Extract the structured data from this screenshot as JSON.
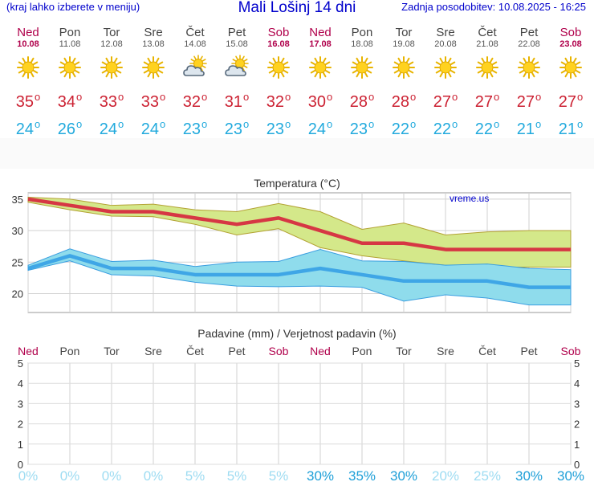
{
  "header": {
    "menu_hint": "(kraj lahko izberete v meniju)",
    "title": "Mali Lošinj 14 dni",
    "updated": "Zadnja posodobitev: 10.08.2025 - 16:25"
  },
  "colors": {
    "weekend": "#b0004b",
    "tmax": "#cc2233",
    "tmin": "#22aadd",
    "max_band": "#d4e88a",
    "min_band": "#8fdcec",
    "title_blue": "#0000cc"
  },
  "days": [
    {
      "name": "Ned",
      "date": "10.08",
      "weekend": true,
      "icon": "sun-icon",
      "tmax": "35",
      "tmin": "24"
    },
    {
      "name": "Pon",
      "date": "11.08",
      "weekend": false,
      "icon": "sun-icon",
      "tmax": "34",
      "tmin": "26"
    },
    {
      "name": "Tor",
      "date": "12.08",
      "weekend": false,
      "icon": "sun-icon",
      "tmax": "33",
      "tmin": "24"
    },
    {
      "name": "Sre",
      "date": "13.08",
      "weekend": false,
      "icon": "sun-icon",
      "tmax": "33",
      "tmin": "24"
    },
    {
      "name": "Čet",
      "date": "14.08",
      "weekend": false,
      "icon": "cloud-sun-icon",
      "tmax": "32",
      "tmin": "23"
    },
    {
      "name": "Pet",
      "date": "15.08",
      "weekend": false,
      "icon": "cloud-sun-icon",
      "tmax": "31",
      "tmin": "23"
    },
    {
      "name": "Sob",
      "date": "16.08",
      "weekend": true,
      "icon": "sun-icon",
      "tmax": "32",
      "tmin": "23"
    },
    {
      "name": "Ned",
      "date": "17.08",
      "weekend": true,
      "icon": "sun-icon",
      "tmax": "30",
      "tmin": "24"
    },
    {
      "name": "Pon",
      "date": "18.08",
      "weekend": false,
      "icon": "sun-icon",
      "tmax": "28",
      "tmin": "23"
    },
    {
      "name": "Tor",
      "date": "19.08",
      "weekend": false,
      "icon": "sun-icon",
      "tmax": "28",
      "tmin": "22"
    },
    {
      "name": "Sre",
      "date": "20.08",
      "weekend": false,
      "icon": "sun-icon",
      "tmax": "27",
      "tmin": "22"
    },
    {
      "name": "Čet",
      "date": "21.08",
      "weekend": false,
      "icon": "sun-icon",
      "tmax": "27",
      "tmin": "22"
    },
    {
      "name": "Pet",
      "date": "22.08",
      "weekend": false,
      "icon": "sun-icon",
      "tmax": "27",
      "tmin": "21"
    },
    {
      "name": "Sob",
      "date": "23.08",
      "weekend": true,
      "icon": "sun-icon",
      "tmax": "27",
      "tmin": "21"
    }
  ],
  "chart_data": [
    {
      "type": "line",
      "title": "Temperatura (°C)",
      "watermark": "vreme.us",
      "x": [
        0,
        1,
        2,
        3,
        4,
        5,
        6,
        7,
        8,
        9,
        10,
        11,
        12,
        13
      ],
      "ylim": [
        17,
        36
      ],
      "yticks": [
        20,
        25,
        30,
        35
      ],
      "series": [
        {
          "name": "max",
          "values": [
            35,
            34,
            33,
            33,
            32,
            31,
            32,
            30,
            28,
            28,
            27,
            27,
            27,
            27
          ]
        },
        {
          "name": "max_upper",
          "values": [
            35.3,
            35,
            34,
            34.2,
            33.3,
            33,
            34.3,
            33,
            30.2,
            31.2,
            29.3,
            29.8,
            30,
            30
          ]
        },
        {
          "name": "max_lower",
          "values": [
            34.5,
            33.3,
            32.3,
            32.2,
            31,
            29.3,
            30.3,
            27.3,
            26,
            25.2,
            24.5,
            24.2,
            24.2,
            24.2
          ]
        },
        {
          "name": "min",
          "values": [
            24,
            26,
            24,
            24,
            23,
            23,
            23,
            24,
            23,
            22,
            22,
            22,
            21,
            21
          ]
        },
        {
          "name": "min_upper",
          "values": [
            24.5,
            27.1,
            25.1,
            25.3,
            24.3,
            25,
            25.1,
            27,
            25.2,
            25.1,
            24.5,
            24.7,
            24,
            23.8
          ]
        },
        {
          "name": "min_lower",
          "values": [
            23.7,
            25.2,
            23,
            22.8,
            21.8,
            21.2,
            21.1,
            21.2,
            21,
            18.8,
            19.8,
            19.3,
            18.2,
            18.2
          ]
        }
      ]
    },
    {
      "type": "bar",
      "title": "Padavine (mm) / Verjetnost padavin (%)",
      "categories": [
        "Ned",
        "Pon",
        "Tor",
        "Sre",
        "Čet",
        "Pet",
        "Sob",
        "Ned",
        "Pon",
        "Tor",
        "Sre",
        "Čet",
        "Pet",
        "Sob"
      ],
      "weekend": [
        true,
        false,
        false,
        false,
        false,
        false,
        true,
        true,
        false,
        false,
        false,
        false,
        false,
        true
      ],
      "values_mm": [
        0,
        0,
        0,
        0,
        0,
        0,
        0,
        0,
        0,
        0,
        0,
        0,
        0,
        0
      ],
      "probability": [
        "0%",
        "0%",
        "0%",
        "0%",
        "5%",
        "5%",
        "5%",
        "30%",
        "35%",
        "30%",
        "20%",
        "25%",
        "30%",
        "30%"
      ],
      "ylim": [
        0,
        5
      ],
      "yticks": [
        0,
        1,
        2,
        3,
        4,
        5
      ]
    }
  ]
}
